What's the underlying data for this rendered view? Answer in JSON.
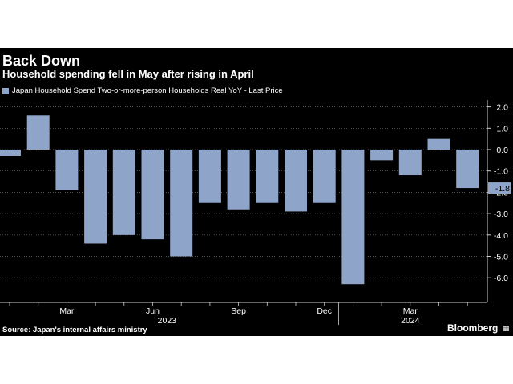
{
  "header": {
    "title": "Back Down",
    "subtitle": "Household spending fell in May after rising in April",
    "legend_label": "Japan Household Spend Two-or-more-person Households Real YoY - Last Price"
  },
  "footer": {
    "source": "Source: Japan's internal affairs ministry",
    "brand": "Bloomberg"
  },
  "colors": {
    "background": "#000000",
    "bar": "#8ea4c8",
    "text": "#ffffff",
    "grid": "#6e6e6e",
    "last_value_bg": "#8ea4c8"
  },
  "chart_data": {
    "type": "bar",
    "title": "Back Down",
    "subtitle": "Household spending fell in May after rising in April",
    "series": [
      {
        "name": "Japan Household Spend Two-or-more-person Households Real YoY - Last Price",
        "values": [
          -0.3,
          1.6,
          -1.9,
          -4.4,
          -4.0,
          -4.2,
          -5.0,
          -2.5,
          -2.8,
          -2.5,
          -2.9,
          -2.5,
          -6.3,
          -0.5,
          -1.2,
          0.5,
          -1.8
        ]
      }
    ],
    "categories": [
      "2023-01",
      "2023-02",
      "2023-03",
      "2023-04",
      "2023-05",
      "2023-06",
      "2023-07",
      "2023-08",
      "2023-09",
      "2023-10",
      "2023-11",
      "2023-12",
      "2024-01",
      "2024-02",
      "2024-03",
      "2024-04",
      "2024-05"
    ],
    "x_tick_labels": [
      {
        "index": 2,
        "label": "Mar"
      },
      {
        "index": 5,
        "label": "Jun"
      },
      {
        "index": 8,
        "label": "Sep"
      },
      {
        "index": 11,
        "label": "Dec"
      },
      {
        "index": 14,
        "label": "Mar"
      }
    ],
    "year_labels": [
      {
        "index": 5.5,
        "label": "2023"
      },
      {
        "index": 14,
        "label": "2024"
      }
    ],
    "year_divider_after_index": 11.5,
    "y_ticks": [
      2.0,
      1.0,
      0.0,
      -1.0,
      -2.0,
      -3.0,
      -4.0,
      -5.0,
      -6.0
    ],
    "y_tick_labels": [
      "2.0",
      "1.0",
      "0.0",
      "-1.0",
      "-2.0",
      "-3.0",
      "-4.0",
      "-5.0",
      "-6.0"
    ],
    "ylim": [
      -7.0,
      2.3
    ],
    "last_value_label": "-1.8",
    "grid": true,
    "legend_position": "top-left",
    "xlabel": "",
    "ylabel": ""
  }
}
